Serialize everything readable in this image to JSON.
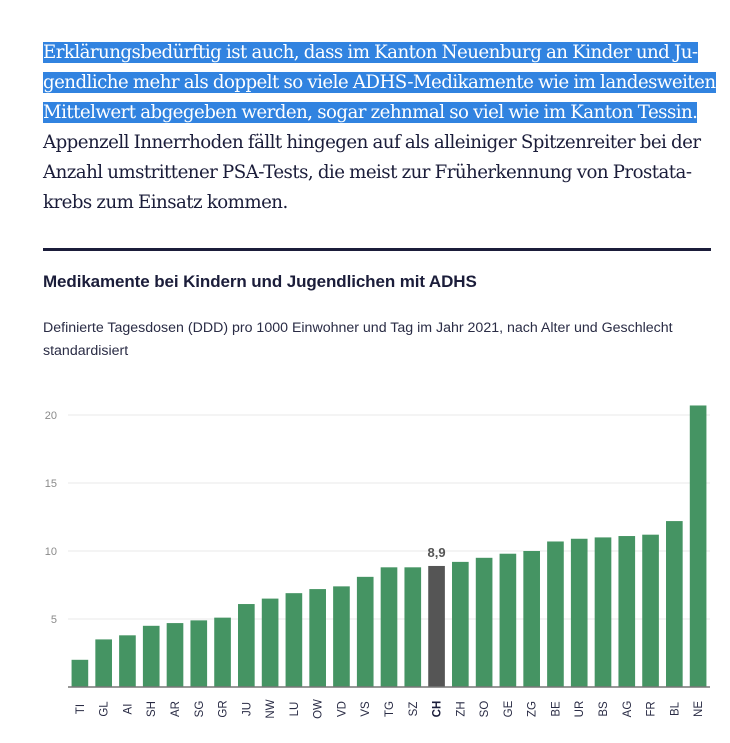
{
  "article": {
    "selected_lines": [
      "Erklärungsbedürftig ist auch, dass im Kanton Neuenburg an Kinder und Ju-",
      "gendliche mehr als doppelt so viele ADHS-Medikamente wie im landesweiten",
      "Mittelwert abgegeben werden, sogar zehnmal so viel wie im Kanton Tessin."
    ],
    "lines": [
      "Appenzell Innerrhoden fällt hingegen auf als alleiniger Spitzenreiter bei der",
      "Anzahl umstrittener PSA-Tests, die meist zur Früherkennung von Prostata-",
      "krebs zum Einsatz kommen."
    ]
  },
  "chart_data": {
    "type": "bar",
    "title": "Medikamente bei Kindern und Jugendlichen mit ADHS",
    "subtitle": "Definierte Tagesdosen (DDD) pro 1000 Einwohner und Tag im Jahr 2021, nach Alter und Geschlecht standardisiert",
    "xlabel": "",
    "ylabel": "",
    "ylim": [
      0,
      20
    ],
    "yticks": [
      5,
      10,
      15,
      20
    ],
    "grid": true,
    "categories": [
      "TI",
      "GL",
      "AI",
      "SH",
      "AR",
      "SG",
      "GR",
      "JU",
      "NW",
      "LU",
      "OW",
      "VD",
      "VS",
      "TG",
      "SZ",
      "CH",
      "ZH",
      "SO",
      "GE",
      "ZG",
      "BE",
      "UR",
      "BS",
      "AG",
      "FR",
      "BL",
      "NE"
    ],
    "values": [
      2.0,
      3.5,
      3.8,
      4.5,
      4.7,
      4.9,
      5.1,
      6.1,
      6.5,
      6.9,
      7.2,
      7.4,
      8.1,
      8.8,
      8.8,
      8.9,
      9.2,
      9.5,
      9.8,
      10.0,
      10.7,
      10.9,
      11.0,
      11.1,
      11.2,
      12.2,
      20.7
    ],
    "highlight": "CH",
    "highlight_label": "8,9",
    "colors": {
      "bar": "#459463",
      "highlight": "#555555",
      "grid": "#e8e8e8",
      "axis": "#777777"
    }
  }
}
